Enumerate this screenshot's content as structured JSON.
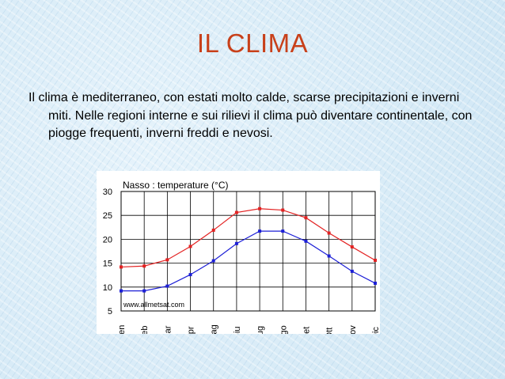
{
  "slide": {
    "title": "IL CLIMA",
    "paragraph": "Il clima è mediterraneo, con estati molto calde, scarse precipitazioni e inverni miti. Nelle regioni interne e sui rilievi il clima può diventare continentale, con piogge frequenti, inverni freddi e nevosi."
  },
  "colors": {
    "title": "#c8401a",
    "max_series": "#e32222",
    "min_series": "#1c1fd6"
  },
  "chart_data": {
    "type": "line",
    "title": "Nasso : temperature (°C)",
    "watermark": "www.allmetsat.com",
    "categories": [
      "Gen",
      "Feb",
      "Mar",
      "Apr",
      "Mag",
      "Giu",
      "Lug",
      "Ago",
      "Set",
      "Ott",
      "Nov",
      "Dic"
    ],
    "series": [
      {
        "values": [
          14.2,
          14.4,
          15.7,
          18.5,
          21.9,
          25.6,
          26.4,
          26.1,
          24.5,
          21.3,
          18.4,
          15.6
        ]
      },
      {
        "values": [
          9.2,
          9.2,
          10.2,
          12.6,
          15.5,
          19.1,
          21.7,
          21.7,
          19.6,
          16.5,
          13.3,
          10.8
        ]
      }
    ],
    "yticks": [
      5,
      10,
      15,
      20,
      25,
      30
    ],
    "ylim": [
      5,
      30
    ],
    "grid": true
  }
}
